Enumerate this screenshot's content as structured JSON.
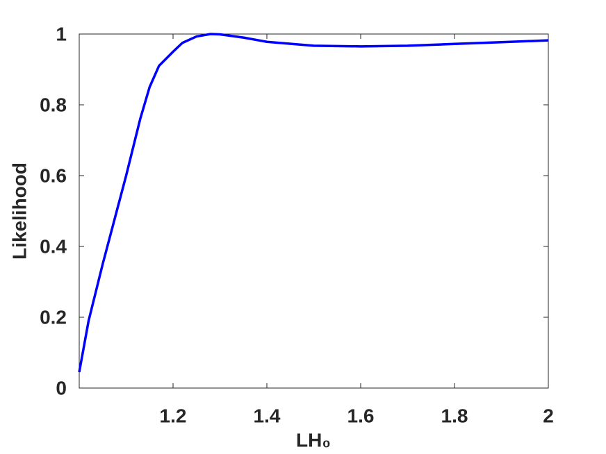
{
  "chart_data": {
    "type": "line",
    "x_label": "LH₀",
    "y_label": "Likelihood",
    "x": [
      1.0,
      1.02,
      1.05,
      1.08,
      1.1,
      1.13,
      1.15,
      1.17,
      1.2,
      1.22,
      1.25,
      1.28,
      1.3,
      1.35,
      1.4,
      1.5,
      1.6,
      1.7,
      1.8,
      1.9,
      2.0
    ],
    "series": [
      {
        "color": "#0000ff",
        "values": [
          0.045,
          0.19,
          0.35,
          0.5,
          0.6,
          0.76,
          0.85,
          0.91,
          0.95,
          0.975,
          0.993,
          1.0,
          0.999,
          0.99,
          0.978,
          0.967,
          0.965,
          0.967,
          0.972,
          0.977,
          0.982
        ]
      }
    ],
    "xlim": [
      1.0,
      2.0
    ],
    "ylim": [
      0,
      1
    ],
    "xticks": [
      1.2,
      1.4,
      1.6,
      1.8,
      2
    ],
    "yticks": [
      0,
      0.2,
      0.4,
      0.6,
      0.8,
      1
    ],
    "grid": false
  }
}
